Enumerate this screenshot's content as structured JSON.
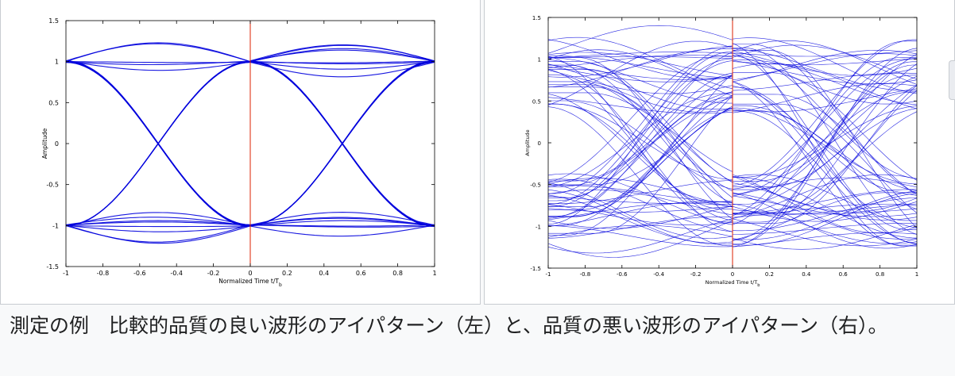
{
  "caption": "測定の例　比較的品質の良い波形のアイパターン（左）と、品質の悪い波形のアイパターン（右）。",
  "colors": {
    "trace": "#0000dd",
    "marker": "#dd2200",
    "axis": "#000000"
  },
  "chart_data": [
    {
      "type": "line",
      "xlabel": "Normalized Time t/T",
      "xlabel_sub": "b",
      "ylabel": "Amplitude",
      "xlim": [
        -1,
        1
      ],
      "ylim": [
        -1.5,
        1.5
      ],
      "x_ticks": [
        -1,
        -0.8,
        -0.6,
        -0.4,
        -0.2,
        0,
        0.2,
        0.4,
        0.6,
        0.8,
        1
      ],
      "x_tick_labels": [
        "-1",
        "-0.8",
        "-0.6",
        "-0.4",
        "-0.2",
        "0",
        "0.2",
        "0.4",
        "0.6",
        "0.8",
        "1"
      ],
      "y_ticks": [
        -1.5,
        -1,
        -0.5,
        0,
        0.5,
        1,
        1.5
      ],
      "y_tick_labels": [
        "-1.5",
        "-1",
        "-0.5",
        "0",
        "0.5",
        "1",
        "1.5"
      ],
      "marker_x": 0,
      "grid": false,
      "quality": "good",
      "eye_crossings": [
        -0.5,
        0.5
      ],
      "crossing_spread": 0.05,
      "peak_spread": 0.45
    },
    {
      "type": "line",
      "xlabel": "Normalized Time t/T",
      "xlabel_sub": "b",
      "ylabel": "Amplitude",
      "xlim": [
        -1,
        1
      ],
      "ylim": [
        -1.5,
        1.5
      ],
      "x_ticks": [
        -1,
        -0.8,
        -0.6,
        -0.4,
        -0.2,
        0,
        0.2,
        0.4,
        0.6,
        0.8,
        1
      ],
      "x_tick_labels": [
        "-1",
        "-0.8",
        "-0.6",
        "-0.4",
        "-0.2",
        "0",
        "0.2",
        "0.4",
        "0.6",
        "0.8",
        "1"
      ],
      "y_ticks": [
        -1.5,
        -1,
        -0.5,
        0,
        0.5,
        1,
        1.5
      ],
      "y_tick_labels": [
        "-1.5",
        "-1",
        "-0.5",
        "0",
        "0.5",
        "1",
        "1.5"
      ],
      "marker_x": 0,
      "grid": false,
      "quality": "poor",
      "eye_crossings": [
        -0.42,
        0.58
      ],
      "crossing_spread": 0.18,
      "peak_spread": 0.45
    }
  ]
}
